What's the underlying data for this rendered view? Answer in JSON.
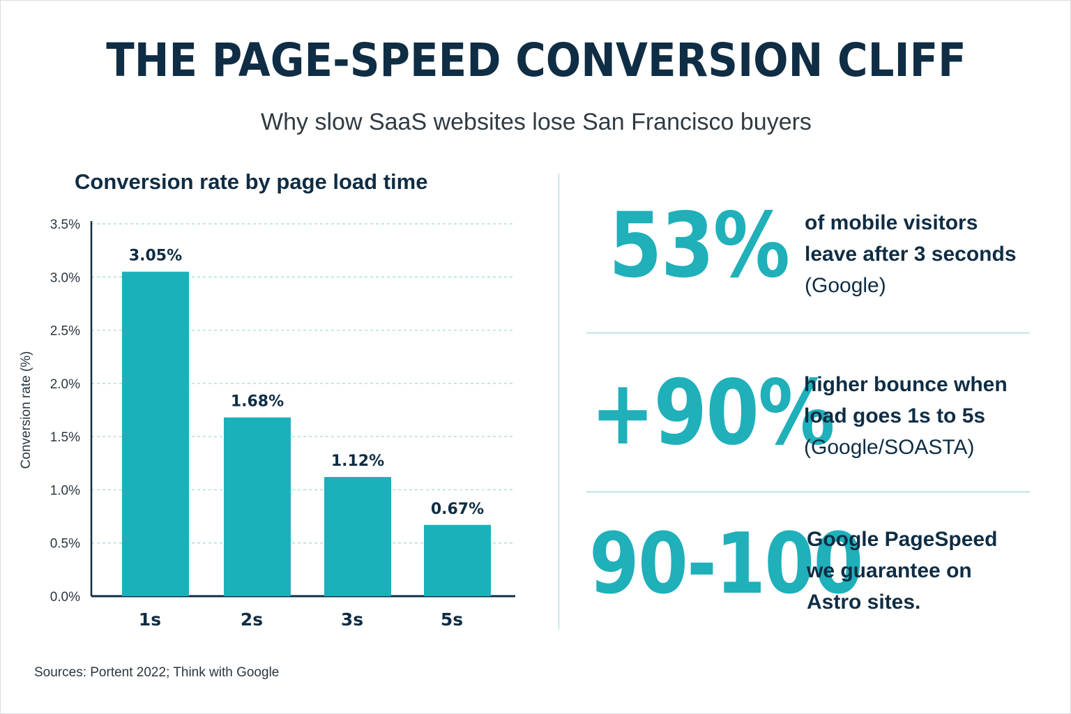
{
  "header": {
    "title": "THE PAGE-SPEED CONVERSION CLIFF",
    "subtitle": "Why slow SaaS websites lose San Francisco buyers"
  },
  "chart_data": {
    "type": "bar",
    "title": "Conversion rate by page load time",
    "xlabel": "",
    "ylabel": "Conversion rate (%)",
    "categories": [
      "1s",
      "2s",
      "3s",
      "5s"
    ],
    "values": [
      3.05,
      1.68,
      1.12,
      0.67
    ],
    "data_labels": [
      "3.05%",
      "1.68%",
      "1.12%",
      "0.67%"
    ],
    "ylim": [
      0,
      3.5
    ],
    "yticks": [
      0,
      0.5,
      1.0,
      1.5,
      2.0,
      2.5,
      3.0,
      3.5
    ],
    "ytick_labels": [
      "0.0%",
      "0.5%",
      "1.0%",
      "1.5%",
      "2.0%",
      "2.5%",
      "3.0%",
      "3.5%"
    ],
    "grid": true,
    "bar_color": "#1ab1bb",
    "grid_color": "#9fd8d6"
  },
  "source": "Sources: Portent 2022; Think with Google",
  "stats": [
    {
      "value": "53%",
      "lines": [
        "of mobile visitors",
        "leave after 3 seconds"
      ],
      "citation": "(Google)"
    },
    {
      "value": "+90%",
      "lines": [
        "higher bounce when",
        "load goes 1s to 5s"
      ],
      "citation": "(Google/SOASTA)"
    },
    {
      "value": "90-100",
      "lines": [
        "Google PageSpeed",
        "we guarantee on",
        "Astro sites."
      ],
      "citation": ""
    }
  ],
  "colors": {
    "navy": "#0f2d44",
    "teal": "#1fb0ba",
    "divider": "#86cfcc"
  }
}
